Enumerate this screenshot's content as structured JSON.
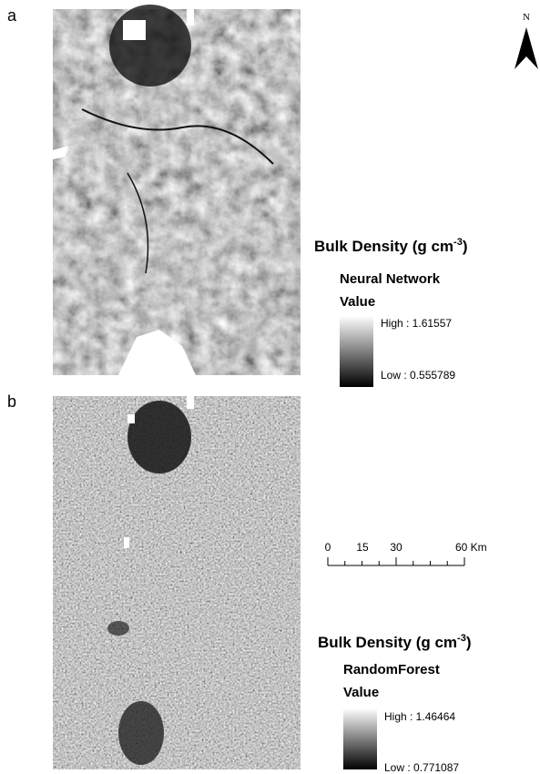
{
  "north": "N",
  "panels": [
    {
      "label": "a",
      "legend": {
        "title": "Bulk Density (g cm",
        "title_sup": "-3",
        "title_end": ")",
        "model": "Neural Network",
        "value_label": "Value",
        "high": "High : 1.61557",
        "low": "Low : 0.555789"
      }
    },
    {
      "label": "b",
      "legend": {
        "title": "Bulk Density (g cm",
        "title_sup": "-3",
        "title_end": ")",
        "model": "RandomForest",
        "value_label": "Value",
        "high": "High : 1.46464",
        "low": "Low : 0.771087"
      }
    }
  ],
  "scale_bar": {
    "labels": [
      "0",
      "15",
      "30",
      "60 Km"
    ]
  }
}
